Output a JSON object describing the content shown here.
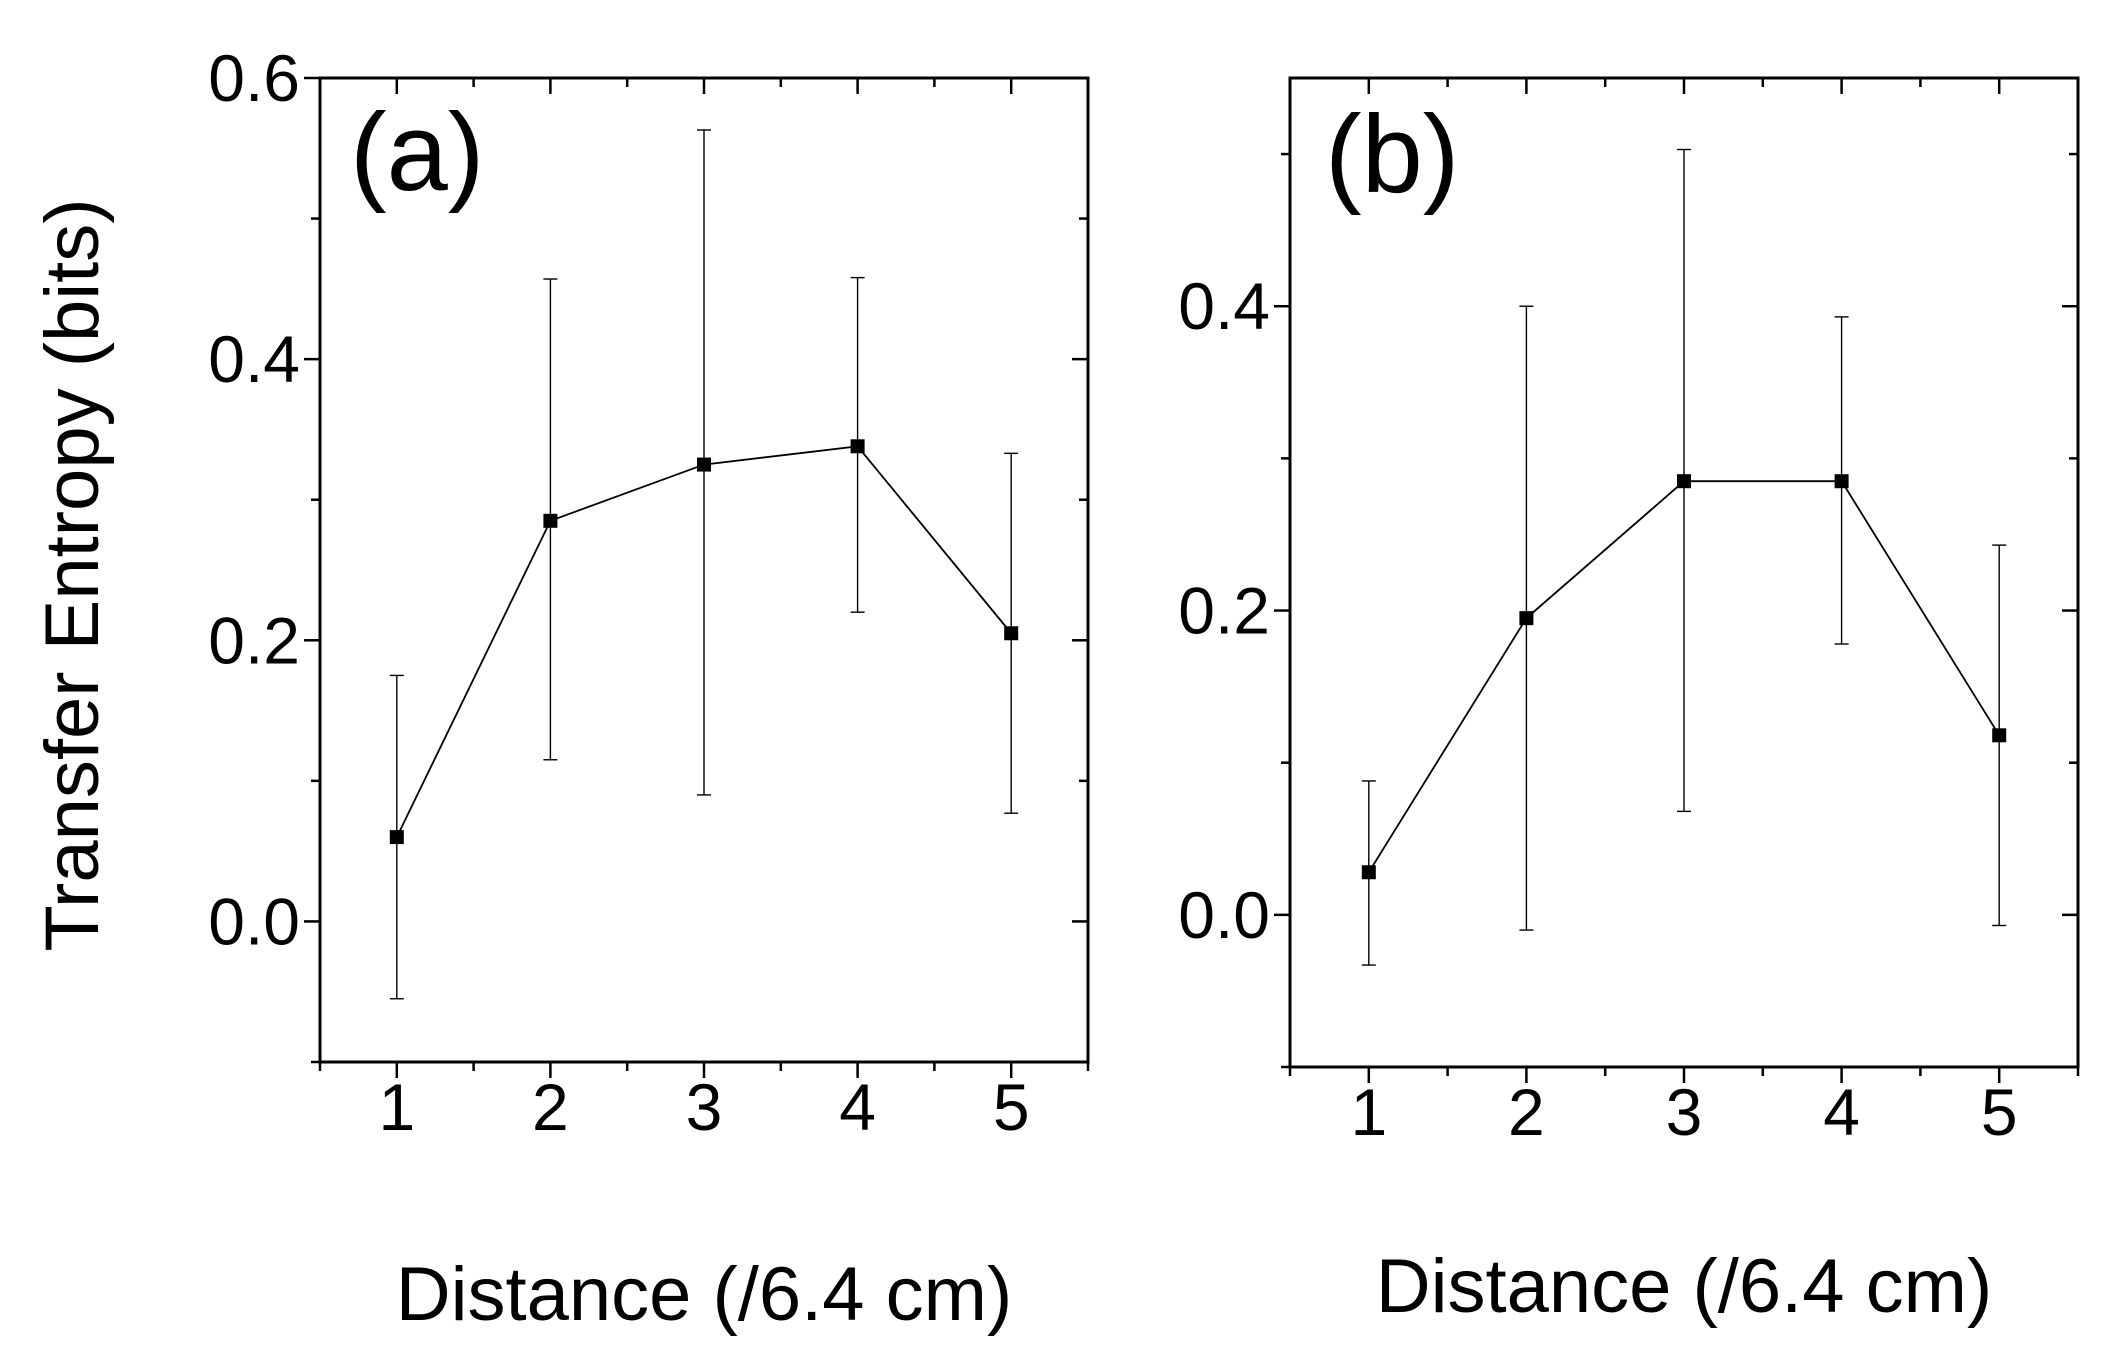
{
  "figure": {
    "ylabel": "Transfer Entropy (bits)"
  },
  "chart_data": [
    {
      "type": "line",
      "panel_label": "(a)",
      "xlabel": "Distance (/6.4 cm)",
      "ylabel": "Transfer Entropy (bits)",
      "xlim": [
        0.5,
        5.5
      ],
      "ylim": [
        -0.1,
        0.6
      ],
      "xticks": [
        "1",
        "2",
        "3",
        "4",
        "5"
      ],
      "yticks": [
        "0.0",
        "0.2",
        "0.4",
        "0.6"
      ],
      "x": [
        1,
        2,
        3,
        4,
        5
      ],
      "y": [
        0.06,
        0.285,
        0.325,
        0.338,
        0.205
      ],
      "err_low": [
        -0.055,
        0.115,
        0.09,
        0.22,
        0.077
      ],
      "err_high": [
        0.175,
        0.457,
        0.563,
        0.458,
        0.333
      ],
      "marker": "square",
      "color": "#000000"
    },
    {
      "type": "line",
      "panel_label": "(b)",
      "xlabel": "Distance (/6.4 cm)",
      "ylabel": "",
      "xlim": [
        0.5,
        5.5
      ],
      "ylim": [
        -0.1,
        0.55
      ],
      "xticks": [
        "1",
        "2",
        "3",
        "4",
        "5"
      ],
      "yticks": [
        "0.0",
        "0.2",
        "0.4"
      ],
      "x": [
        1,
        2,
        3,
        4,
        5
      ],
      "y": [
        0.028,
        0.195,
        0.285,
        0.285,
        0.118
      ],
      "err_low": [
        -0.033,
        -0.01,
        0.068,
        0.178,
        -0.007
      ],
      "err_high": [
        0.088,
        0.4,
        0.503,
        0.393,
        0.243
      ],
      "marker": "square",
      "color": "#000000"
    }
  ]
}
